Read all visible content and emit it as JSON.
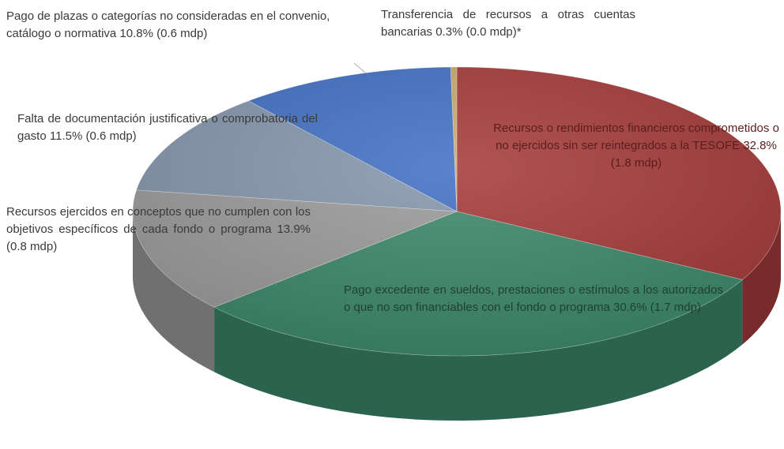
{
  "chart_data": {
    "type": "pie",
    "categories": [
      "Recursos o rendimientos financieros comprometidos o no ejercidos sin ser reintegrados a la TESOFE",
      "Pago excedente en sueldos, prestaciones o estímulos a los autorizados o que  no son financiables con el fondo o programa",
      "Recursos ejercidos en conceptos que no cumplen con los objetivos específicos de cada fondo o programa",
      "Falta de documentación justificativa o comprobatoria del gasto",
      "Pago de plazas o categorías no consideradas en el convenio, catálogo o normativa",
      "Transferencia de recursos a otras cuentas bancarias"
    ],
    "values": [
      32.8,
      30.6,
      13.9,
      11.5,
      10.8,
      0.3
    ],
    "value_labels": [
      "32.8% (1.8 mdp)",
      "30.6% (1.7 mdp)",
      "13.9% (0.8 mdp)",
      "11.5% (0.6 mdp)",
      "10.8% (0.6 mdp)",
      "0.3% (0.0 mdp)*"
    ],
    "colors": [
      "#a63c3c",
      "#3e8a6c",
      "#9c9c9c",
      "#8797ad",
      "#4472c4",
      "#c9aa6c"
    ]
  }
}
